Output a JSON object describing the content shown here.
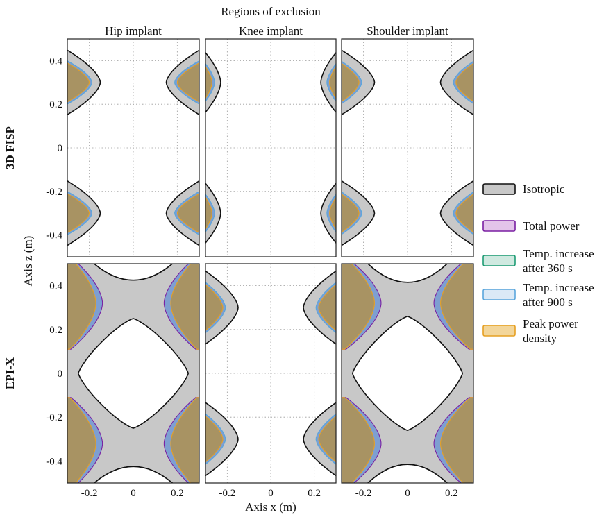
{
  "chart_data": {
    "type": "area",
    "title": "Regions of exclusion",
    "xlabel": "Axis x (m)",
    "ylabel": "Axis z (m)",
    "columns": [
      "Hip implant",
      "Knee implant",
      "Shoulder implant"
    ],
    "rows": [
      "3D FISP",
      "EPI-X"
    ],
    "x_ticks": [
      "-0.2",
      "0",
      "0.2"
    ],
    "y_ticks": [
      "0.4",
      "0.2",
      "0",
      "-0.2",
      "-0.4"
    ],
    "x_tick_values": [
      -0.2,
      0,
      0.2
    ],
    "y_tick_values": [
      0.4,
      0.2,
      0,
      -0.2,
      -0.4
    ],
    "xlim": [
      -0.3,
      0.3
    ],
    "ylim": [
      -0.5,
      0.5
    ],
    "grid": true,
    "legend_position": "right",
    "series": [
      {
        "name": "Isotropic",
        "color": "#c8c8c8",
        "edge": "#111111"
      },
      {
        "name": "Total power",
        "color": "#e3c4ea",
        "edge": "#7a1fa2"
      },
      {
        "name": "Temp. increase after 360 s",
        "color": "#cfe9e0",
        "edge": "#1e9c74"
      },
      {
        "name": "Temp. increase after 900 s",
        "color": "#dbe9f6",
        "edge": "#5aa6dc"
      },
      {
        "name": "Peak power density",
        "color": "#f3d69a",
        "edge": "#e6a023"
      }
    ],
    "legend_labels": [
      [
        "Isotropic"
      ],
      [
        "Total power"
      ],
      [
        "Temp. increase",
        "after 360 s"
      ],
      [
        "Temp. increase",
        "after 900 s"
      ],
      [
        "Peak power",
        "density"
      ]
    ],
    "regions": {
      "3D FISP": {
        "Hip implant": {
          "isotropic_band_z": [
            0.14,
            0.5
          ],
          "isotropic_inner_x": 0.15,
          "overlap_inner_x": 0.2
        },
        "Knee implant": {
          "isotropic_band_z": [
            0.14,
            0.5
          ],
          "isotropic_inner_x": 0.23,
          "overlap_inner_x": 0.27
        },
        "Shoulder implant": {
          "isotropic_band_z": [
            0.14,
            0.5
          ],
          "isotropic_inner_x": 0.15,
          "overlap_inner_x": 0.22
        }
      },
      "EPI-X": {
        "Hip implant": {
          "isotropic_inner_diamond_z": 0.25,
          "isotropic_neck_z": 0.35,
          "overlap_inner_x": 0.12
        },
        "Knee implant": {
          "isotropic_band_z": [
            0.12,
            0.5
          ],
          "isotropic_inner_x": 0.15,
          "overlap_inner_x": 0.22
        },
        "Shoulder implant": {
          "isotropic_inner_diamond_z": 0.26,
          "isotropic_neck_z": 0.33,
          "overlap_inner_x": 0.1
        }
      }
    }
  },
  "colors": {
    "overlap_fill": "#a89363",
    "blue_fill": "#7e9fd1",
    "isotropic_fill": "#c8c8c8",
    "outline": "#111111"
  }
}
